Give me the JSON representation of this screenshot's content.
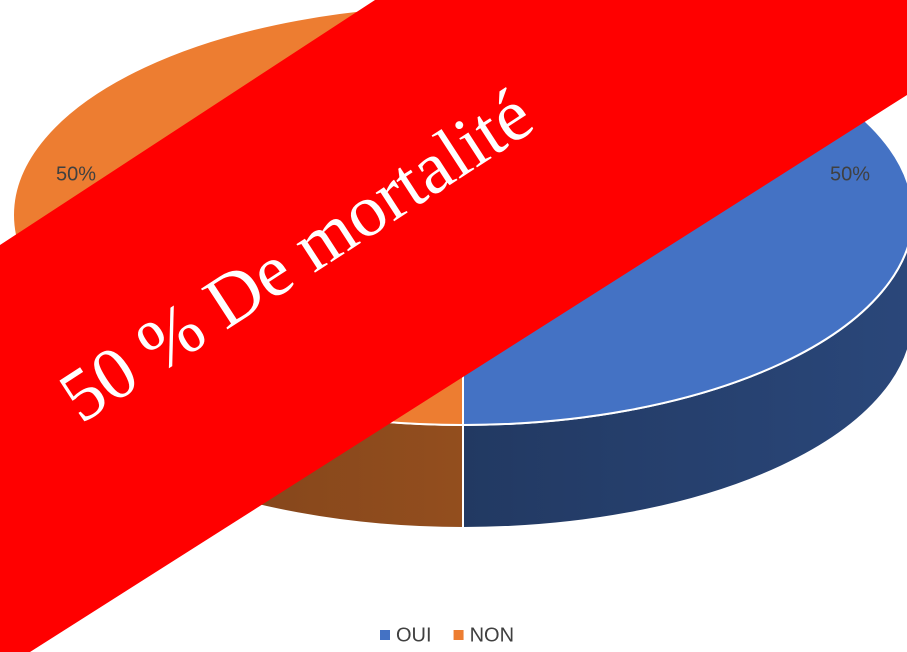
{
  "chart_data": {
    "type": "pie",
    "categories": [
      "OUI",
      "NON"
    ],
    "values": [
      50,
      50
    ],
    "value_labels": [
      "50%",
      "50%"
    ],
    "colors": [
      "#4472c4",
      "#ed7d31"
    ],
    "annotation": "50 % De mortalité"
  }
}
